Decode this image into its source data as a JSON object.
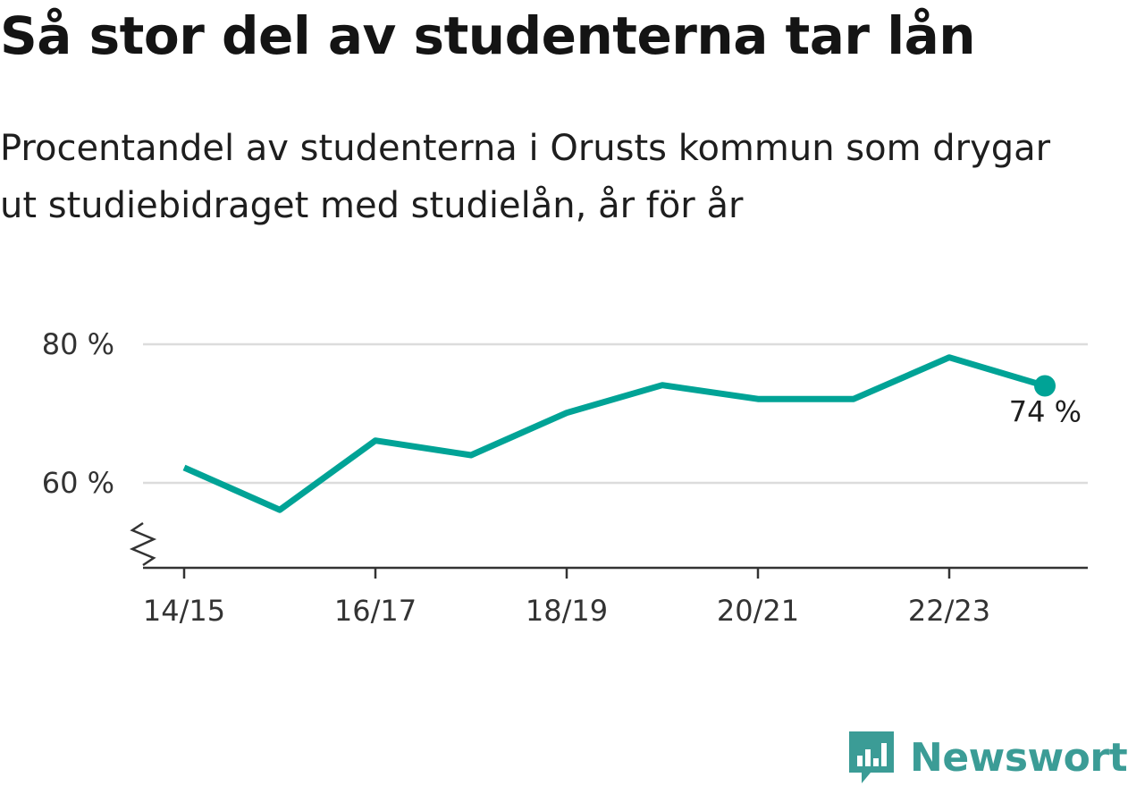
{
  "chart_data": {
    "type": "line",
    "title": "Så stor del av studenterna tar lån",
    "subtitle": "Procentandel av studenterna i Orusts kommun som drygar ut studiebidraget med studielån, år för år",
    "categories": [
      "14/15",
      "15/16",
      "16/17",
      "17/18",
      "18/19",
      "19/20",
      "20/21",
      "21/22",
      "22/23",
      "23/24"
    ],
    "tick_labels": [
      "14/15",
      "16/17",
      "18/19",
      "20/21",
      "22/23"
    ],
    "series": [
      {
        "values": [
          62.2,
          56.1,
          66.1,
          64.0,
          70.1,
          74.1,
          72.1,
          72.1,
          78.1,
          74.0
        ]
      }
    ],
    "ylim": [
      48,
      82
    ],
    "yticks": [
      60,
      80
    ],
    "ytick_labels": [
      "60 %",
      "80 %"
    ],
    "end_label": "74 %",
    "grid": true,
    "axis_break": true,
    "line_color": "#00a396"
  },
  "brand": {
    "name": "Newsworthy",
    "icon": "newsworthy-logo-icon",
    "color": "#3b9c96"
  }
}
